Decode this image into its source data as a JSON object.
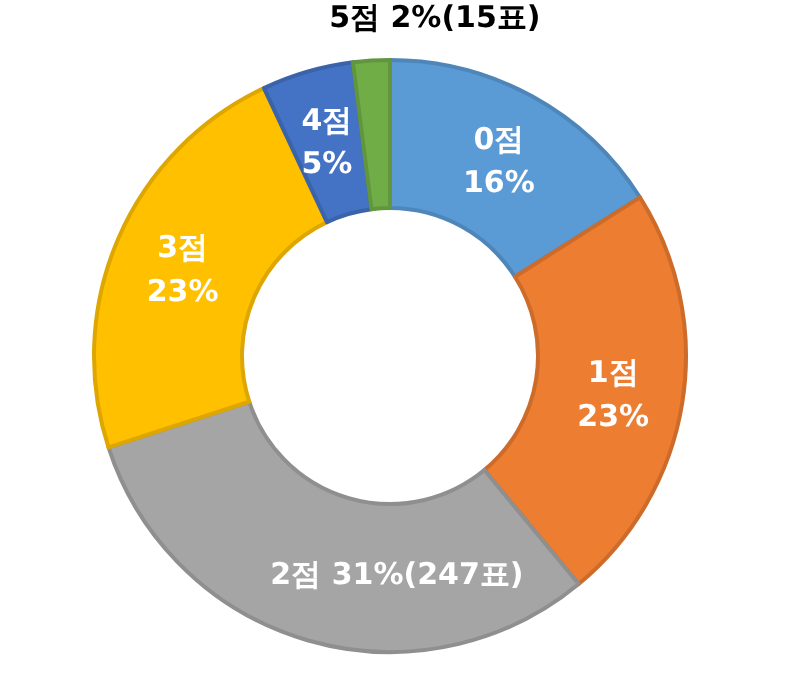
{
  "chart_data": {
    "type": "donut",
    "categories": [
      "0점",
      "1점",
      "2점",
      "3점",
      "4점",
      "5점"
    ],
    "values": [
      16,
      23,
      31,
      23,
      5,
      2
    ],
    "colors": [
      "#5b9bd5",
      "#ed7d31",
      "#a5a5a5",
      "#ffc000",
      "#4472c4",
      "#70ad47"
    ],
    "value_labels": [
      "16%",
      "23%",
      "31%(247표)",
      "23%",
      "5%",
      "2%(15표)"
    ]
  }
}
